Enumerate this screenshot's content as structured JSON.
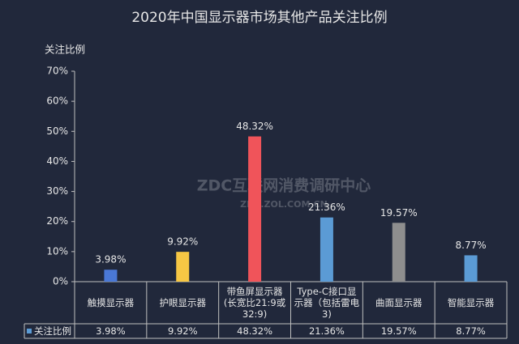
{
  "chart_data": {
    "type": "bar",
    "title": "2020年中国显示器市场其他产品关注比例",
    "y_axis_title": "关注比例",
    "watermark": [
      "ZDC互联网消费调研中心",
      "ZDC.ZOL.COM.CN"
    ],
    "categories": [
      "触摸显示器",
      "护眼显示器",
      "带鱼屏显示器(长宽比21:9或32:9)",
      "Type-C接口显示器（包括雷电3)",
      "曲面显示器",
      "智能显示器"
    ],
    "series": [
      {
        "name": "关注比例",
        "color": "#5b9bd5",
        "colors": [
          "#4a78d6",
          "#f7c744",
          "#f0545a",
          "#5b9bd5",
          "#8e8e8e",
          "#5b9bd5"
        ],
        "values": [
          3.98,
          9.92,
          48.32,
          21.36,
          19.57,
          8.77
        ],
        "value_labels": [
          "3.98%",
          "9.92%",
          "48.32%",
          "21.36%",
          "19.57%",
          "8.77%"
        ]
      }
    ],
    "ylim": [
      0,
      70
    ],
    "yticks": [
      {
        "value": 0,
        "label": "0%"
      },
      {
        "value": 10,
        "label": "10%"
      },
      {
        "value": 20,
        "label": "20%"
      },
      {
        "value": 30,
        "label": "30%"
      },
      {
        "value": 40,
        "label": "40%"
      },
      {
        "value": 50,
        "label": "50%"
      },
      {
        "value": 60,
        "label": "60%"
      },
      {
        "value": 70,
        "label": "70%"
      }
    ],
    "grid": false
  }
}
